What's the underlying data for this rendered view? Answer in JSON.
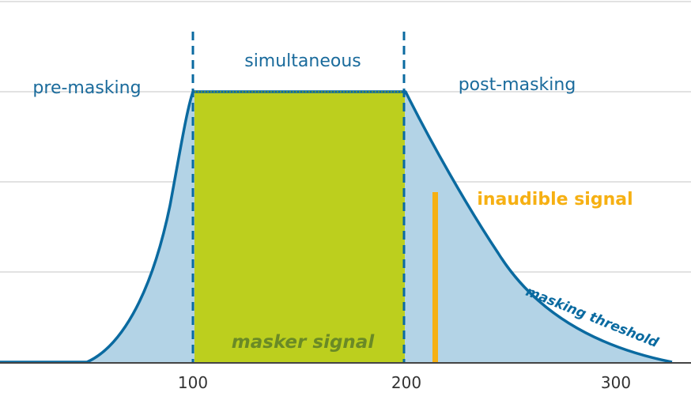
{
  "labels": {
    "pre_masking": "pre-masking",
    "simultaneous": "simultaneous",
    "post_masking": "post-masking",
    "masker_signal": "masker signal",
    "inaudible_signal": "inaudible signal",
    "masking_threshold": "masking threshold"
  },
  "x_ticks": [
    "100",
    "200",
    "300"
  ],
  "colors": {
    "threshold_line": "#0a6aa0",
    "threshold_fill": "#b3d3e6",
    "masker": "#bccf1e",
    "masker_text": "#6a8a26",
    "inaudible": "#f6b013",
    "grid": "#d8d8d8",
    "axis": "#444444",
    "label_blue": "#1a6b9c"
  }
}
